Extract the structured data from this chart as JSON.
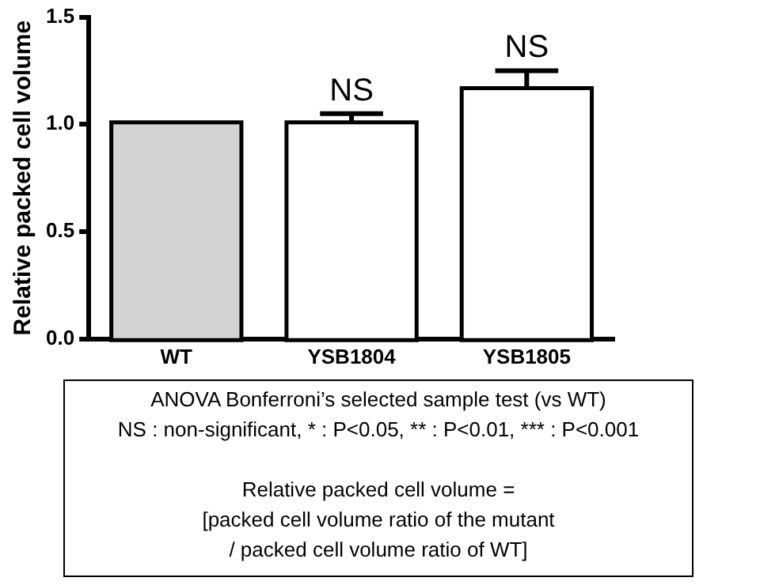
{
  "chart_data": {
    "type": "bar",
    "ylabel": "Relative packed cell volume",
    "categories": [
      "WT",
      "YSB1804",
      "YSB1805"
    ],
    "values": [
      1.0,
      1.0,
      1.16
    ],
    "errors": [
      0.005,
      0.05,
      0.09
    ],
    "colors": [
      "#d3d3d3",
      "#ffffff",
      "#ffffff"
    ],
    "ylim": [
      0,
      1.5
    ],
    "yticks": [
      {
        "value": 0,
        "label": "0.0"
      },
      {
        "value": 0.5,
        "label": "0.5"
      },
      {
        "value": 1,
        "label": "1.0"
      },
      {
        "value": 1.5,
        "label": "1.5"
      }
    ],
    "grid": false,
    "legend": false,
    "annotations": [
      {
        "text": "NS",
        "x": "YSB1804",
        "y": 1.05
      },
      {
        "text": "NS",
        "x": "YSB1805",
        "y": 1.25
      },
      "ANOVA Bonferroni’s selected sample test (vs WT)",
      "NS : non-significant, * : P<0.05, ** : P<0.01, *** : P<0.001",
      "Relative packed cell volume =",
      "[packed cell volume ratio of the mutant",
      "/ packed cell volume ratio of WT]"
    ]
  }
}
